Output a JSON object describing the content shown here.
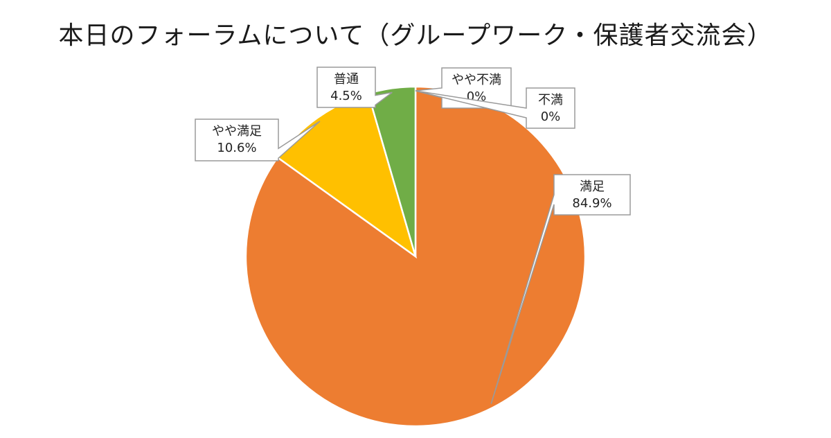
{
  "title": "本日のフォーラムについて（グループワーク・保護者交流会）",
  "chart_data": {
    "type": "pie",
    "title": "本日のフォーラムについて（グループワーク・保護者交流会）",
    "start_angle_deg": 0,
    "direction": "clockwise",
    "slices": [
      {
        "label": "満足",
        "value": 84.9,
        "value_label": "84.9%",
        "color": "#ED7D31"
      },
      {
        "label": "やや満足",
        "value": 10.6,
        "value_label": "10.6%",
        "color": "#FFC000"
      },
      {
        "label": "普通",
        "value": 4.5,
        "value_label": "4.5%",
        "color": "#70AD47"
      },
      {
        "label": "やや不満",
        "value": 0,
        "value_label": "0%",
        "color": "#4472C4"
      },
      {
        "label": "不満",
        "value": 0,
        "value_label": "0%",
        "color": "#A5A5A5"
      }
    ]
  }
}
